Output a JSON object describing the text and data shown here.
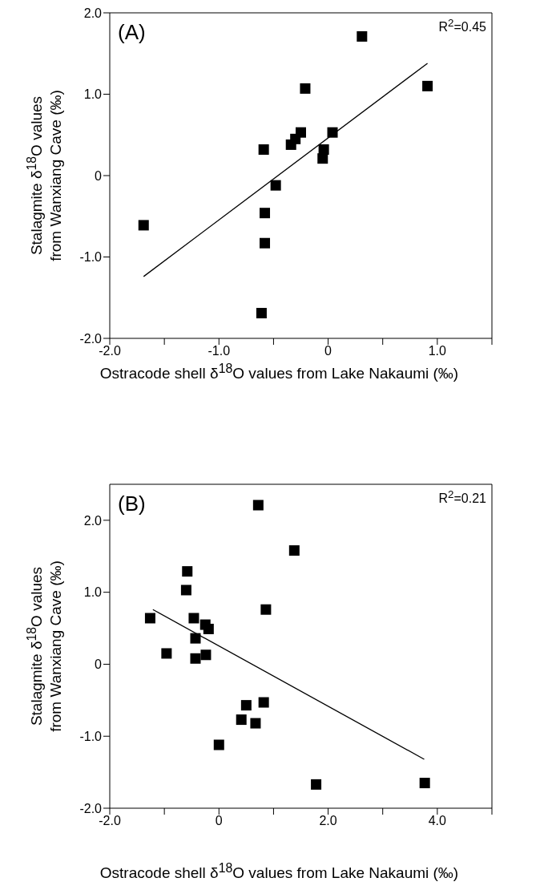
{
  "chart_data": [
    {
      "type": "scatter",
      "title": "(A)",
      "xlabel": "Ostracode shell δ$^{18}$O values from Lake Nakaumi (‰)",
      "ylabel": "Stalagmite δ$^{18}$O values\nfrom Wanxiang Cave (‰)",
      "annotations": [
        "R$^{2}$=0.45"
      ],
      "xlim": [
        -2,
        1.5
      ],
      "xticks": [
        {
          "value": -2,
          "label": "-2.0"
        },
        {
          "value": -1.5,
          "label": null
        },
        {
          "value": -1,
          "label": "-1.0"
        },
        {
          "value": -0.5,
          "label": null
        },
        0,
        {
          "value": 0.5,
          "label": null
        },
        {
          "value": 1,
          "label": "1.0"
        },
        {
          "value": 1.5,
          "label": null
        }
      ],
      "ylim": [
        -2,
        2
      ],
      "yticks": [
        {
          "value": -2,
          "label": "-2.0"
        },
        {
          "value": -1,
          "label": "-1.0"
        },
        0,
        {
          "value": 1,
          "label": "1.0"
        },
        {
          "value": 2,
          "label": "2.0"
        }
      ],
      "series": [
        {
          "marker": "square",
          "color": "#000000",
          "x": [
            0.31,
            0.91,
            -0.21,
            -0.25,
            0.04,
            -0.3,
            -0.34,
            -0.59,
            -0.04,
            -0.05,
            -0.48,
            -0.58,
            -1.69,
            -0.58,
            -0.61
          ],
          "values": [
            1.71,
            1.1,
            1.07,
            0.53,
            0.53,
            0.45,
            0.38,
            0.32,
            0.32,
            0.21,
            -0.12,
            -0.46,
            -0.61,
            -0.83,
            -1.69
          ]
        },
        {
          "type": "line",
          "color": "#000000",
          "x": [
            -1.69,
            0.91
          ],
          "values": [
            -1.24,
            1.38
          ]
        }
      ]
    },
    {
      "type": "scatter",
      "title": "(B)",
      "xlabel": "Ostracode shell δ$^{18}$O values from Lake Nakaumi (‰)",
      "ylabel": "Stalagmite δ$^{18}$O values\nfrom Wanxiang Cave (‰)",
      "annotations": [
        "R$^{2}$=0.21"
      ],
      "xlim": [
        -2,
        5
      ],
      "xticks": [
        {
          "value": -2,
          "label": "-2.0"
        },
        {
          "value": -1,
          "label": null
        },
        0,
        {
          "value": 1,
          "label": null
        },
        {
          "value": 2,
          "label": "2.0"
        },
        {
          "value": 3,
          "label": null
        },
        {
          "value": 4,
          "label": "4.0"
        },
        {
          "value": 5,
          "label": null
        }
      ],
      "ylim": [
        -2,
        2.5
      ],
      "yticks": [
        {
          "value": -2,
          "label": "-2.0"
        },
        {
          "value": -1,
          "label": "-1.0"
        },
        0,
        {
          "value": 1,
          "label": "1.0"
        },
        {
          "value": 2,
          "label": "2.0"
        }
      ],
      "series": [
        {
          "marker": "square",
          "color": "#000000",
          "x": [
            0.72,
            1.38,
            -0.58,
            -0.6,
            0.86,
            -1.26,
            -0.46,
            -0.25,
            -0.19,
            -0.43,
            -0.96,
            -0.24,
            -0.43,
            0.82,
            0.5,
            0.41,
            0.67,
            0.0,
            1.78,
            3.77
          ],
          "values": [
            2.21,
            1.58,
            1.29,
            1.03,
            0.76,
            0.64,
            0.64,
            0.55,
            0.49,
            0.36,
            0.15,
            0.13,
            0.08,
            -0.53,
            -0.57,
            -0.77,
            -0.82,
            -1.12,
            -1.67,
            -1.65
          ]
        },
        {
          "type": "line",
          "color": "#000000",
          "x": [
            -1.21,
            3.76
          ],
          "values": [
            0.76,
            -1.32
          ]
        }
      ]
    }
  ]
}
